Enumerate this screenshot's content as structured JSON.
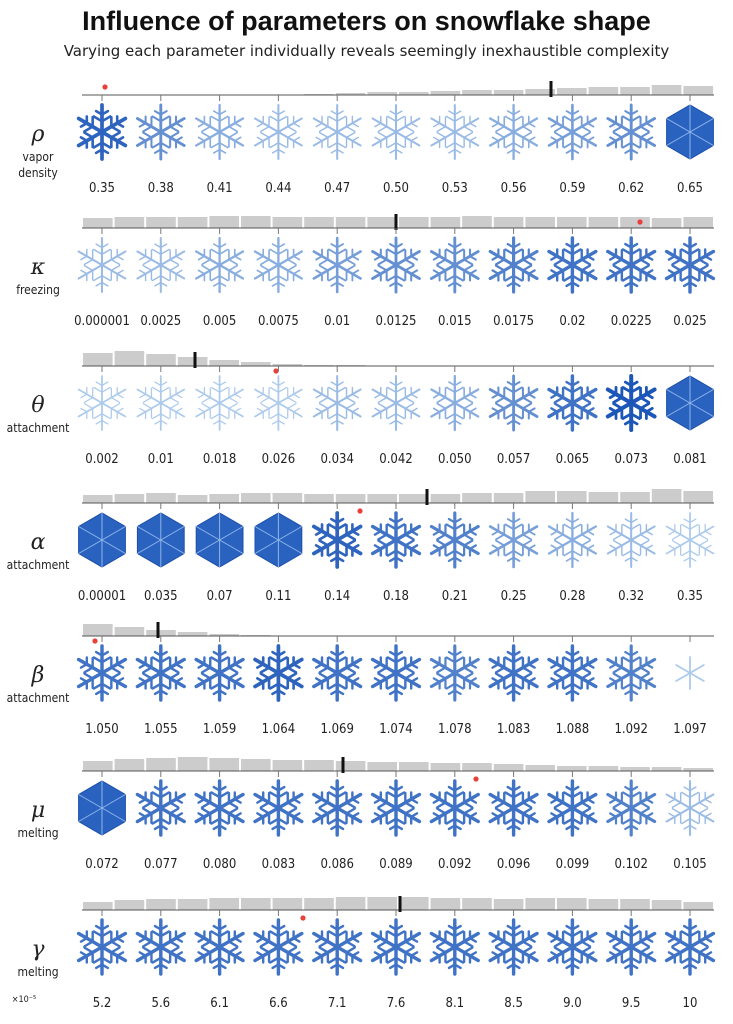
{
  "header": {
    "title": "Influence of parameters on snowflake shape",
    "subtitle": "Varying each parameter individually reveals seemingly inexhaustible complexity"
  },
  "rows": [
    {
      "symbol": "ρ",
      "name": [
        "vapor",
        "density"
      ],
      "values": [
        "0.35",
        "0.38",
        "0.41",
        "0.44",
        "0.47",
        "0.50",
        "0.53",
        "0.56",
        "0.59",
        "0.62",
        "0.65"
      ],
      "hist": [
        0,
        0,
        0,
        0,
        0,
        0,
        0,
        1,
        2,
        3,
        3,
        4,
        5,
        5,
        6,
        7,
        8,
        8,
        10,
        9
      ]
    },
    {
      "symbol": "κ",
      "name": [
        "freezing"
      ],
      "values": [
        "0.000001",
        "0.0025",
        "0.005",
        "0.0075",
        "0.01",
        "0.0125",
        "0.015",
        "0.0175",
        "0.02",
        "0.0225",
        "0.025"
      ],
      "hist": [
        10,
        11,
        11,
        11,
        12,
        12,
        11,
        11,
        11,
        11,
        11,
        11,
        12,
        11,
        11,
        11,
        11,
        11,
        10,
        11
      ]
    },
    {
      "symbol": "θ",
      "name": [
        "attachment"
      ],
      "values": [
        "0.002",
        "0.01",
        "0.018",
        "0.026",
        "0.034",
        "0.042",
        "0.050",
        "0.057",
        "0.065",
        "0.073",
        "0.081"
      ],
      "hist": [
        13,
        15,
        12,
        9,
        6,
        4,
        2,
        1,
        1,
        0,
        0,
        0,
        0,
        0,
        0,
        0,
        0,
        0,
        0,
        0
      ]
    },
    {
      "symbol": "α",
      "name": [
        "attachment"
      ],
      "values": [
        "0.00001",
        "0.035",
        "0.07",
        "0.11",
        "0.14",
        "0.18",
        "0.21",
        "0.25",
        "0.28",
        "0.32",
        "0.35"
      ],
      "hist": [
        8,
        9,
        10,
        8,
        9,
        10,
        10,
        9,
        9,
        9,
        9,
        9,
        10,
        10,
        12,
        12,
        11,
        11,
        14,
        12
      ]
    },
    {
      "symbol": "β",
      "name": [
        "attachment"
      ],
      "values": [
        "1.050",
        "1.055",
        "1.059",
        "1.064",
        "1.069",
        "1.074",
        "1.078",
        "1.083",
        "1.088",
        "1.092",
        "1.097"
      ],
      "hist": [
        12,
        9,
        6,
        4,
        2,
        1,
        0,
        0,
        0,
        0,
        0,
        0,
        0,
        0,
        0,
        0,
        0,
        0,
        0,
        0
      ]
    },
    {
      "symbol": "μ",
      "name": [
        "melting"
      ],
      "values": [
        "0.072",
        "0.077",
        "0.080",
        "0.083",
        "0.086",
        "0.089",
        "0.092",
        "0.096",
        "0.099",
        "0.102",
        "0.105"
      ],
      "hist": [
        10,
        12,
        13,
        14,
        13,
        12,
        11,
        11,
        10,
        9,
        9,
        8,
        8,
        7,
        6,
        5,
        5,
        4,
        4,
        3
      ]
    },
    {
      "symbol": "γ",
      "name": [
        "melting"
      ],
      "note": "×10⁻⁵",
      "values": [
        "5.2",
        "5.6",
        "6.1",
        "6.6",
        "7.1",
        "7.6",
        "8.1",
        "8.5",
        "9.0",
        "9.5",
        "10"
      ],
      "hist": [
        8,
        10,
        11,
        11,
        12,
        12,
        12,
        12,
        13,
        13,
        13,
        12,
        12,
        11,
        12,
        12,
        11,
        11,
        10,
        8
      ]
    }
  ]
}
